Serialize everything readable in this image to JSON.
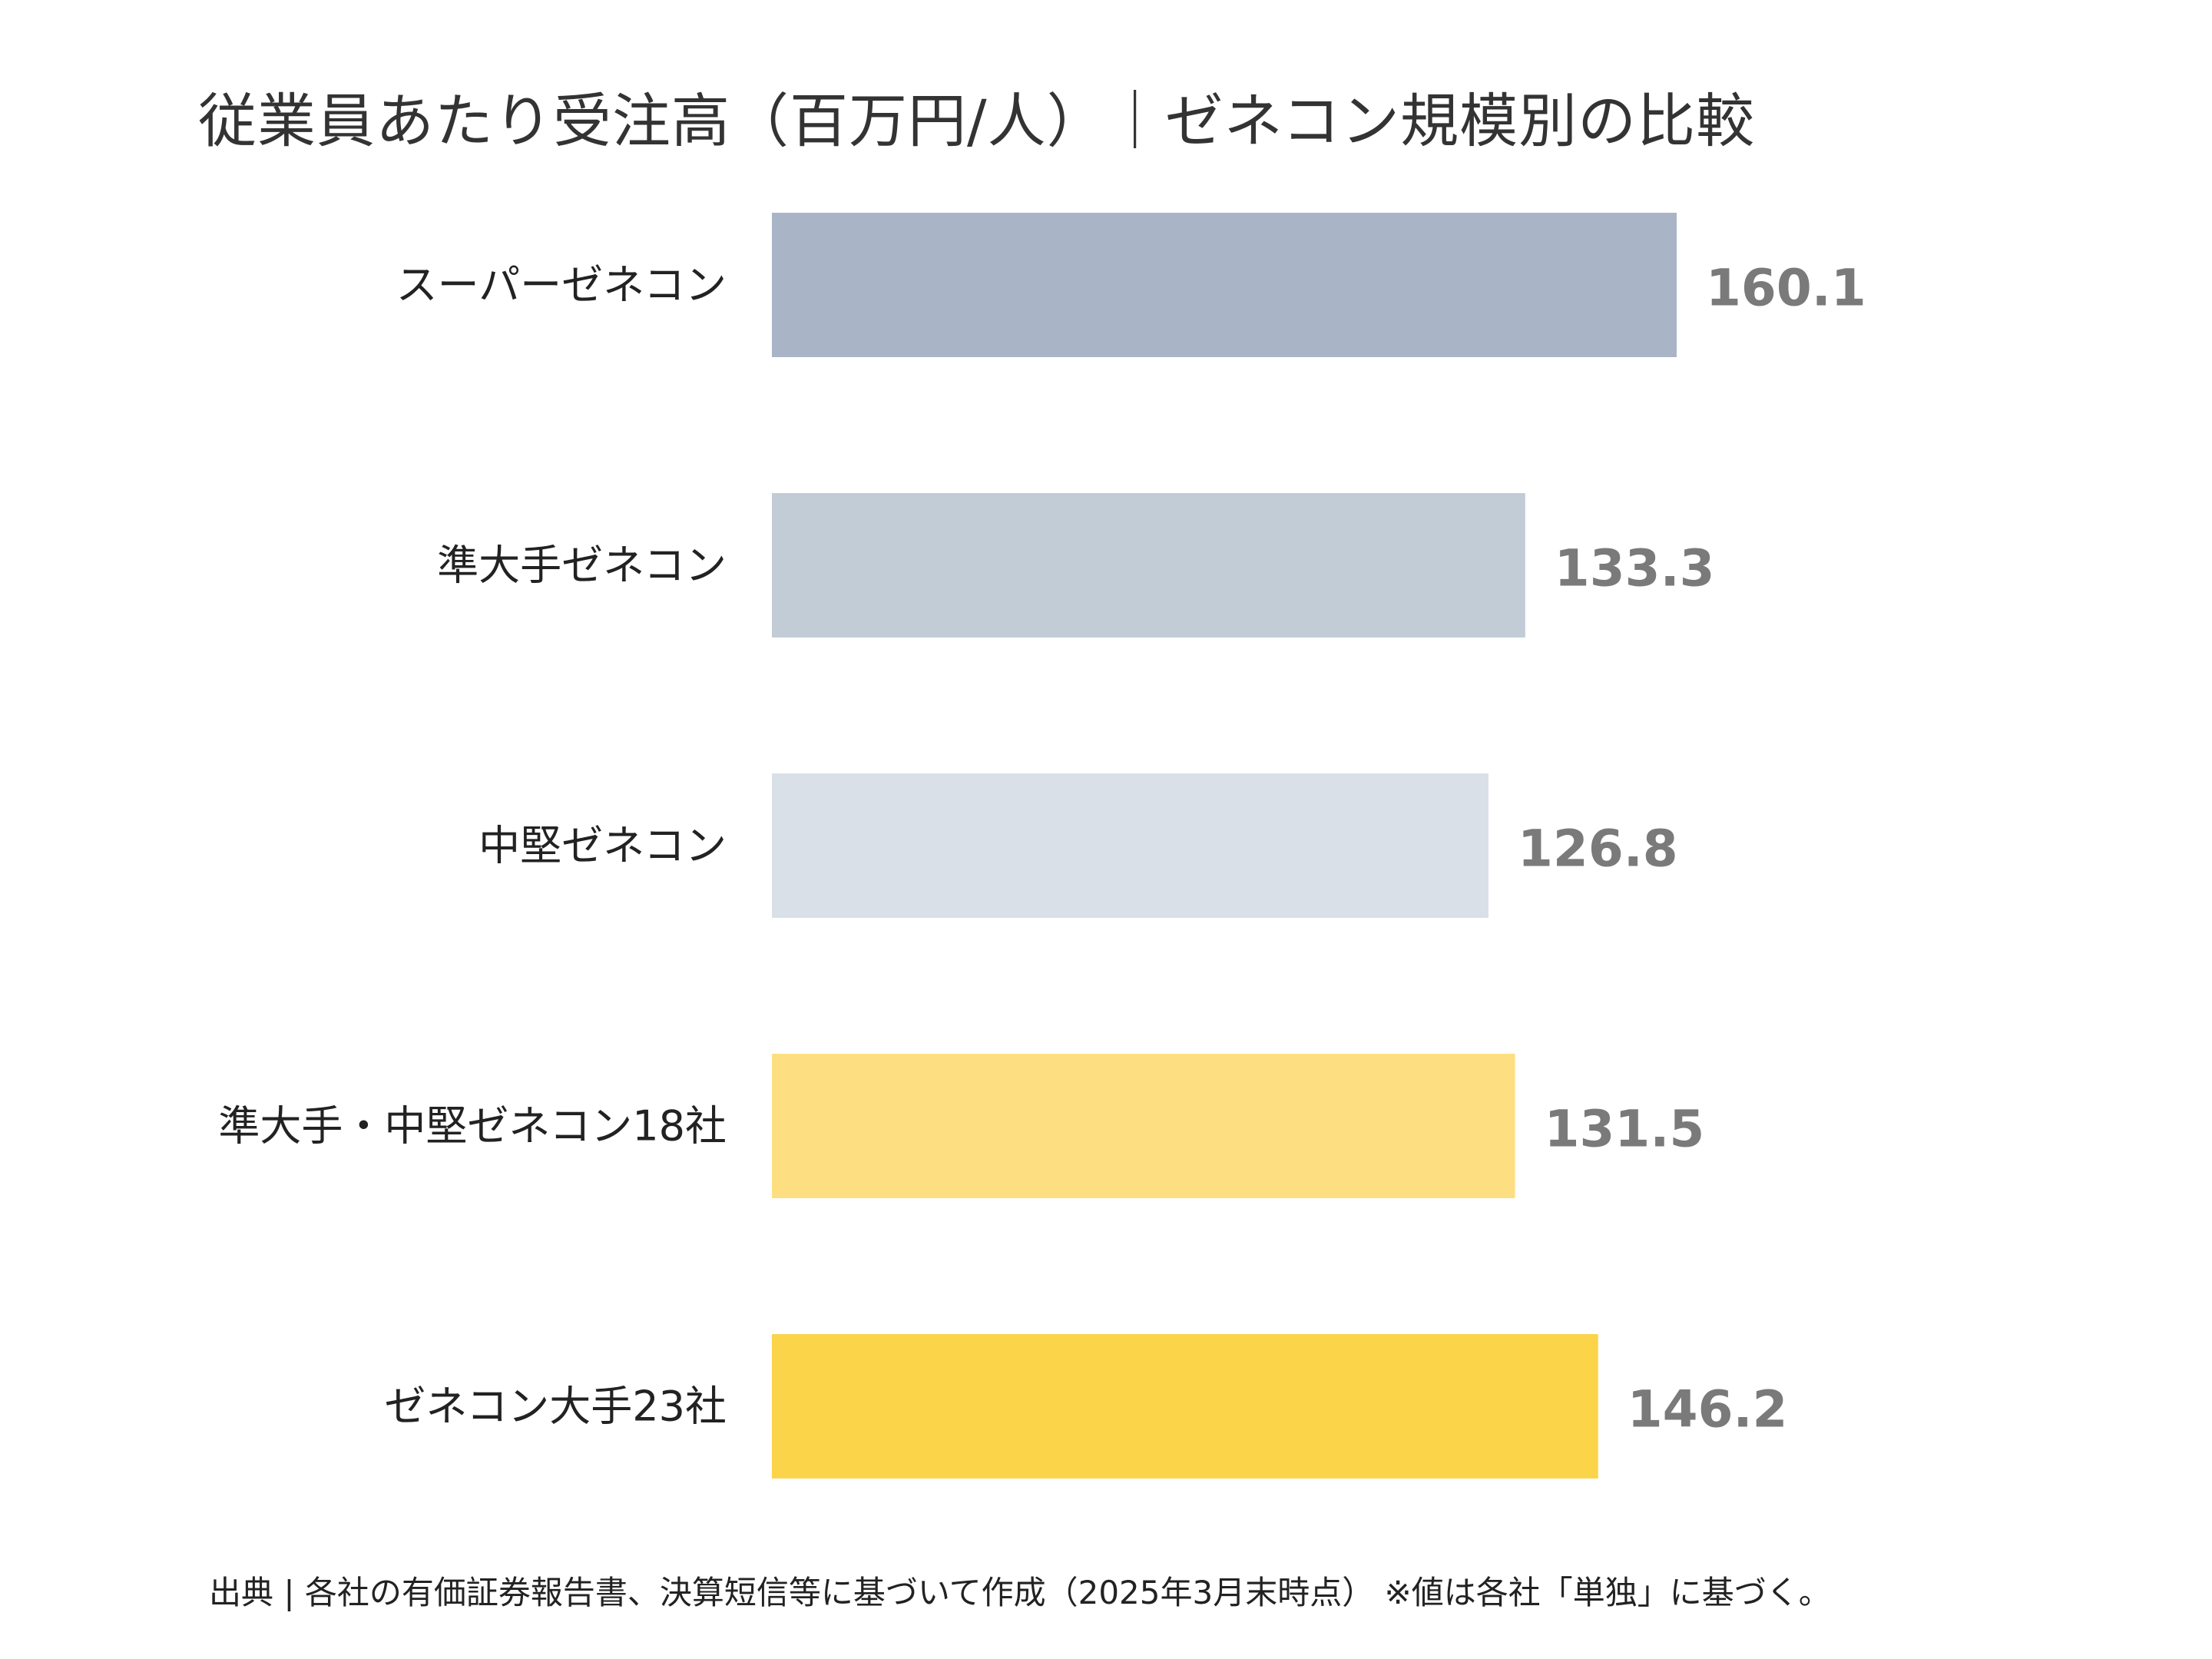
{
  "title": "従業員あたり受注高（百万円/人）｜ゼネコン規模別の比較",
  "source": "出典 | 各社の有価証券報告書、決算短信等に基づいて作成（2025年3月末時点） ※値は各社「単独」に基づく。",
  "chart_data": {
    "type": "bar",
    "orientation": "horizontal",
    "title": "従業員あたり受注高（百万円/人）｜ゼネコン規模別の比較",
    "xlabel": "",
    "ylabel": "",
    "grid": false,
    "xlim": [
      0,
      160.1
    ],
    "categories": [
      "スーパーゼネコン",
      "準大手ゼネコン",
      "中堅ゼネコン",
      "準大手・中堅ゼネコン18社",
      "ゼネコン大手23社"
    ],
    "values": [
      160.1,
      133.3,
      126.8,
      131.5,
      146.2
    ],
    "value_labels": [
      "160.1",
      "133.3",
      "126.8",
      "131.5",
      "146.2"
    ],
    "colors": [
      "#a9b5c6",
      "#c1ccd7",
      "#dae0e8",
      "#fddf82",
      "#fcd44a"
    ]
  }
}
